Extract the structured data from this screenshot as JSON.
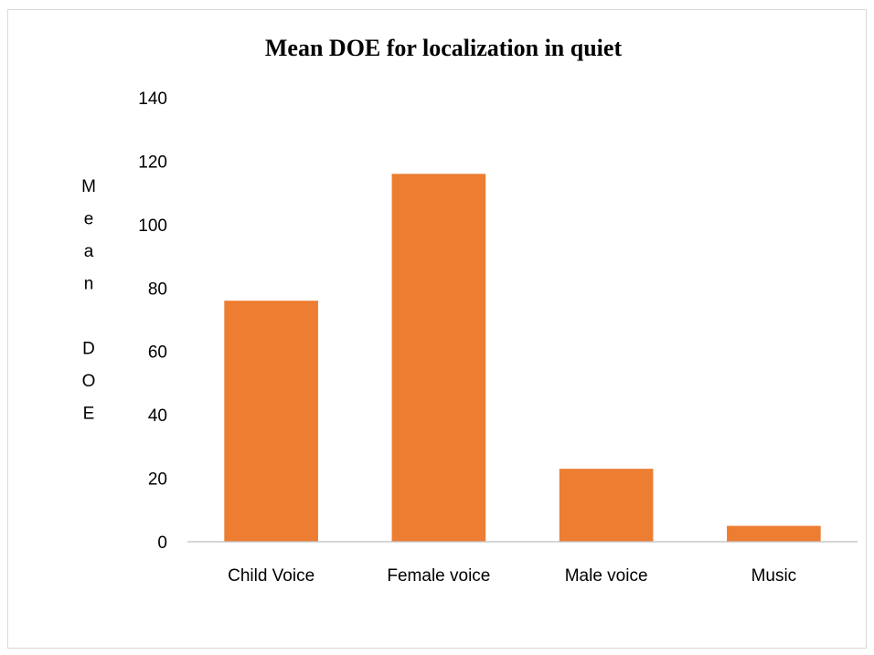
{
  "chart_data": {
    "type": "bar",
    "title": "Mean DOE for localization in quiet",
    "ylabel": "Mean DOE",
    "xlabel": "",
    "categories": [
      "Child Voice",
      "Female voice",
      "Male voice",
      "Music"
    ],
    "values": [
      76,
      116,
      23,
      5
    ],
    "ylim": [
      0,
      140
    ],
    "yticks": [
      0,
      20,
      40,
      60,
      80,
      100,
      120,
      140
    ],
    "grid": false,
    "legend": "none",
    "bar_color": "#ED7D31",
    "axis_color": "#bfbfbf"
  }
}
